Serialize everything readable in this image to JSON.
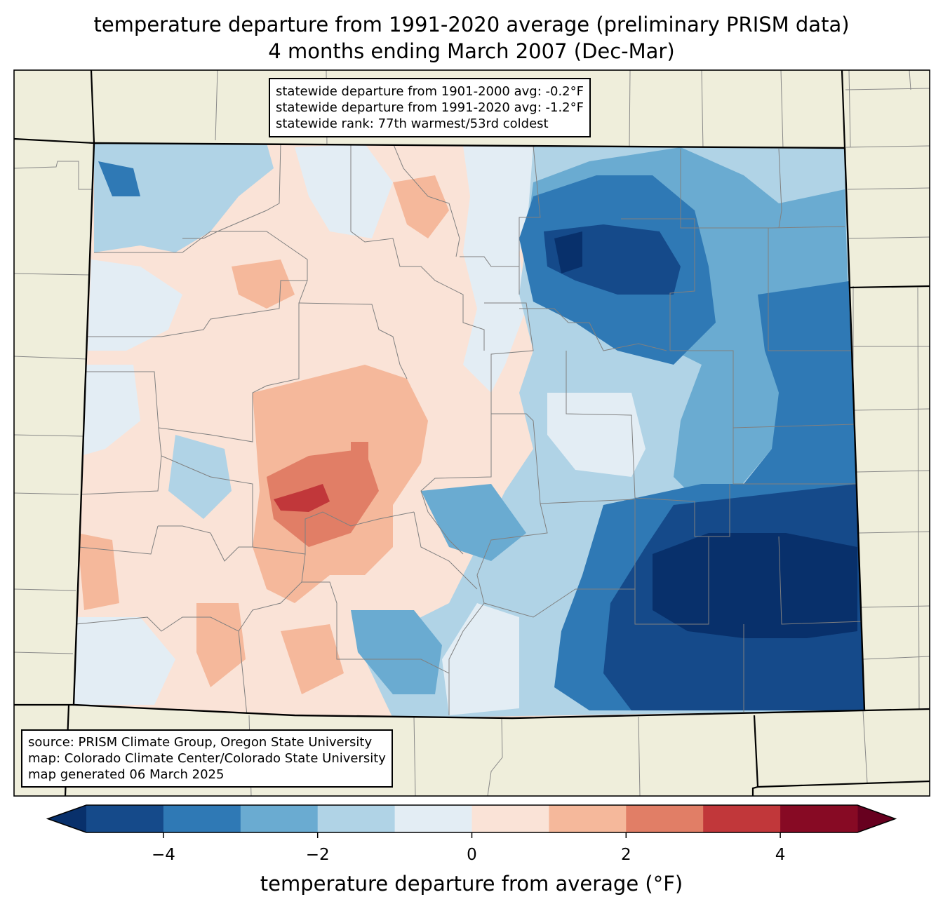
{
  "title": {
    "line1": "temperature departure from 1991-2020 average (preliminary PRISM data)",
    "line2": "4 months ending March 2007 (Dec-Mar)"
  },
  "stats": {
    "line1": "statewide departure from 1901-2000 avg: -0.2°F",
    "line2": "statewide departure from 1991-2020 avg: -1.2°F",
    "line3": "statewide rank: 77th warmest/53rd coldest"
  },
  "source": {
    "line1": "source: PRISM Climate Group, Oregon State University",
    "line2": "map: Colorado Climate Center/Colorado State University",
    "line3": "map generated 06 March 2025"
  },
  "colorbar": {
    "label": "temperature departure from average (°F)",
    "ticks": [
      "−4",
      "−2",
      "0",
      "2",
      "4"
    ],
    "bins": [
      {
        "from": -5,
        "to": -4,
        "color": "#154a8a"
      },
      {
        "from": -4,
        "to": -3,
        "color": "#2f79b5"
      },
      {
        "from": -3,
        "to": -2,
        "color": "#6aabd1"
      },
      {
        "from": -2,
        "to": -1,
        "color": "#b0d3e6"
      },
      {
        "from": -1,
        "to": 0,
        "color": "#e3edf4"
      },
      {
        "from": 0,
        "to": 1,
        "color": "#fae3d7"
      },
      {
        "from": 1,
        "to": 2,
        "color": "#f5b89b"
      },
      {
        "from": 2,
        "to": 3,
        "color": "#e17e66"
      },
      {
        "from": 3,
        "to": 4,
        "color": "#c1373a"
      },
      {
        "from": 4,
        "to": 5,
        "color": "#870a24"
      }
    ],
    "under_color": "#08306b",
    "over_color": "#67001f"
  },
  "colors": {
    "land": "#efeedb",
    "county_lines": "#888888",
    "state_lines": "#000000"
  }
}
